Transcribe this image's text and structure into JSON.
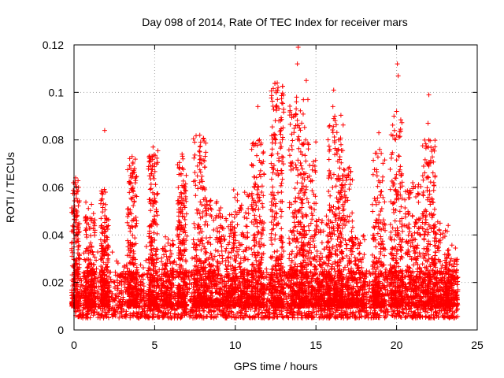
{
  "chart_data": {
    "type": "scatter",
    "title": "Day 098 of 2014, Rate Of TEC Index for receiver mars",
    "xlabel": "GPS time / hours",
    "ylabel": "ROTI / TECUs",
    "xlim": [
      0,
      25
    ],
    "ylim": [
      0,
      0.12
    ],
    "xticks": [
      0,
      5,
      10,
      15,
      20,
      25
    ],
    "xtick_labels": [
      "0",
      "5",
      "10",
      "15",
      "20",
      "25"
    ],
    "yticks": [
      0,
      0.02,
      0.04,
      0.06,
      0.08,
      0.1,
      0.12
    ],
    "ytick_labels": [
      "0",
      "0.02",
      "0.04",
      "0.06",
      "0.08",
      "0.1",
      "0.12"
    ],
    "grid": true,
    "marker": "+",
    "series_color": "#ff0000",
    "data_range_x": [
      0,
      23.8
    ],
    "baseline_band": [
      0.005,
      0.025
    ],
    "notable_points": [
      {
        "x": 0.1,
        "y": 0.064
      },
      {
        "x": 0.15,
        "y": 0.06
      },
      {
        "x": 0.2,
        "y": 0.048
      },
      {
        "x": 1.9,
        "y": 0.084
      },
      {
        "x": 1.95,
        "y": 0.058
      },
      {
        "x": 2.0,
        "y": 0.047
      },
      {
        "x": 3.6,
        "y": 0.073
      },
      {
        "x": 3.65,
        "y": 0.07
      },
      {
        "x": 4.9,
        "y": 0.077
      },
      {
        "x": 5.0,
        "y": 0.07
      },
      {
        "x": 6.7,
        "y": 0.074
      },
      {
        "x": 6.75,
        "y": 0.072
      },
      {
        "x": 7.8,
        "y": 0.082
      },
      {
        "x": 7.85,
        "y": 0.079
      },
      {
        "x": 7.9,
        "y": 0.07
      },
      {
        "x": 9.9,
        "y": 0.059
      },
      {
        "x": 11.4,
        "y": 0.094
      },
      {
        "x": 11.5,
        "y": 0.08
      },
      {
        "x": 12.6,
        "y": 0.104
      },
      {
        "x": 12.65,
        "y": 0.102
      },
      {
        "x": 12.7,
        "y": 0.088
      },
      {
        "x": 13.9,
        "y": 0.119
      },
      {
        "x": 13.85,
        "y": 0.112
      },
      {
        "x": 13.8,
        "y": 0.098
      },
      {
        "x": 13.75,
        "y": 0.091
      },
      {
        "x": 14.4,
        "y": 0.105
      },
      {
        "x": 14.5,
        "y": 0.097
      },
      {
        "x": 16.1,
        "y": 0.101
      },
      {
        "x": 16.05,
        "y": 0.094
      },
      {
        "x": 16.5,
        "y": 0.08
      },
      {
        "x": 16.4,
        "y": 0.076
      },
      {
        "x": 17.0,
        "y": 0.068
      },
      {
        "x": 18.9,
        "y": 0.083
      },
      {
        "x": 18.95,
        "y": 0.076
      },
      {
        "x": 20.05,
        "y": 0.112
      },
      {
        "x": 20.1,
        "y": 0.107
      },
      {
        "x": 20.0,
        "y": 0.092
      },
      {
        "x": 20.0,
        "y": 0.082
      },
      {
        "x": 21.0,
        "y": 0.062
      },
      {
        "x": 22.0,
        "y": 0.099
      },
      {
        "x": 21.95,
        "y": 0.087
      },
      {
        "x": 22.0,
        "y": 0.08
      },
      {
        "x": 22.0,
        "y": 0.069
      },
      {
        "x": 23.2,
        "y": 0.044
      }
    ],
    "bursts": [
      {
        "x": 0.1,
        "peak": 0.064,
        "width": 0.25
      },
      {
        "x": 1.0,
        "peak": 0.055,
        "width": 0.3
      },
      {
        "x": 1.9,
        "peak": 0.06,
        "width": 0.25
      },
      {
        "x": 3.6,
        "peak": 0.073,
        "width": 0.3
      },
      {
        "x": 4.9,
        "peak": 0.077,
        "width": 0.3
      },
      {
        "x": 5.8,
        "peak": 0.04,
        "width": 0.4
      },
      {
        "x": 6.7,
        "peak": 0.074,
        "width": 0.3
      },
      {
        "x": 7.8,
        "peak": 0.082,
        "width": 0.4
      },
      {
        "x": 8.6,
        "peak": 0.055,
        "width": 0.5
      },
      {
        "x": 9.5,
        "peak": 0.05,
        "width": 0.5
      },
      {
        "x": 10.4,
        "peak": 0.058,
        "width": 0.5
      },
      {
        "x": 11.4,
        "peak": 0.08,
        "width": 0.4
      },
      {
        "x": 12.6,
        "peak": 0.104,
        "width": 0.4
      },
      {
        "x": 13.8,
        "peak": 0.098,
        "width": 0.5
      },
      {
        "x": 14.5,
        "peak": 0.08,
        "width": 0.5
      },
      {
        "x": 15.4,
        "peak": 0.048,
        "width": 0.5
      },
      {
        "x": 16.2,
        "peak": 0.092,
        "width": 0.5
      },
      {
        "x": 16.8,
        "peak": 0.072,
        "width": 0.5
      },
      {
        "x": 17.6,
        "peak": 0.04,
        "width": 0.5
      },
      {
        "x": 18.9,
        "peak": 0.076,
        "width": 0.4
      },
      {
        "x": 20.0,
        "peak": 0.09,
        "width": 0.4
      },
      {
        "x": 21.0,
        "peak": 0.062,
        "width": 0.5
      },
      {
        "x": 22.0,
        "peak": 0.08,
        "width": 0.4
      },
      {
        "x": 22.8,
        "peak": 0.046,
        "width": 0.5
      },
      {
        "x": 23.4,
        "peak": 0.03,
        "width": 0.4
      }
    ]
  }
}
